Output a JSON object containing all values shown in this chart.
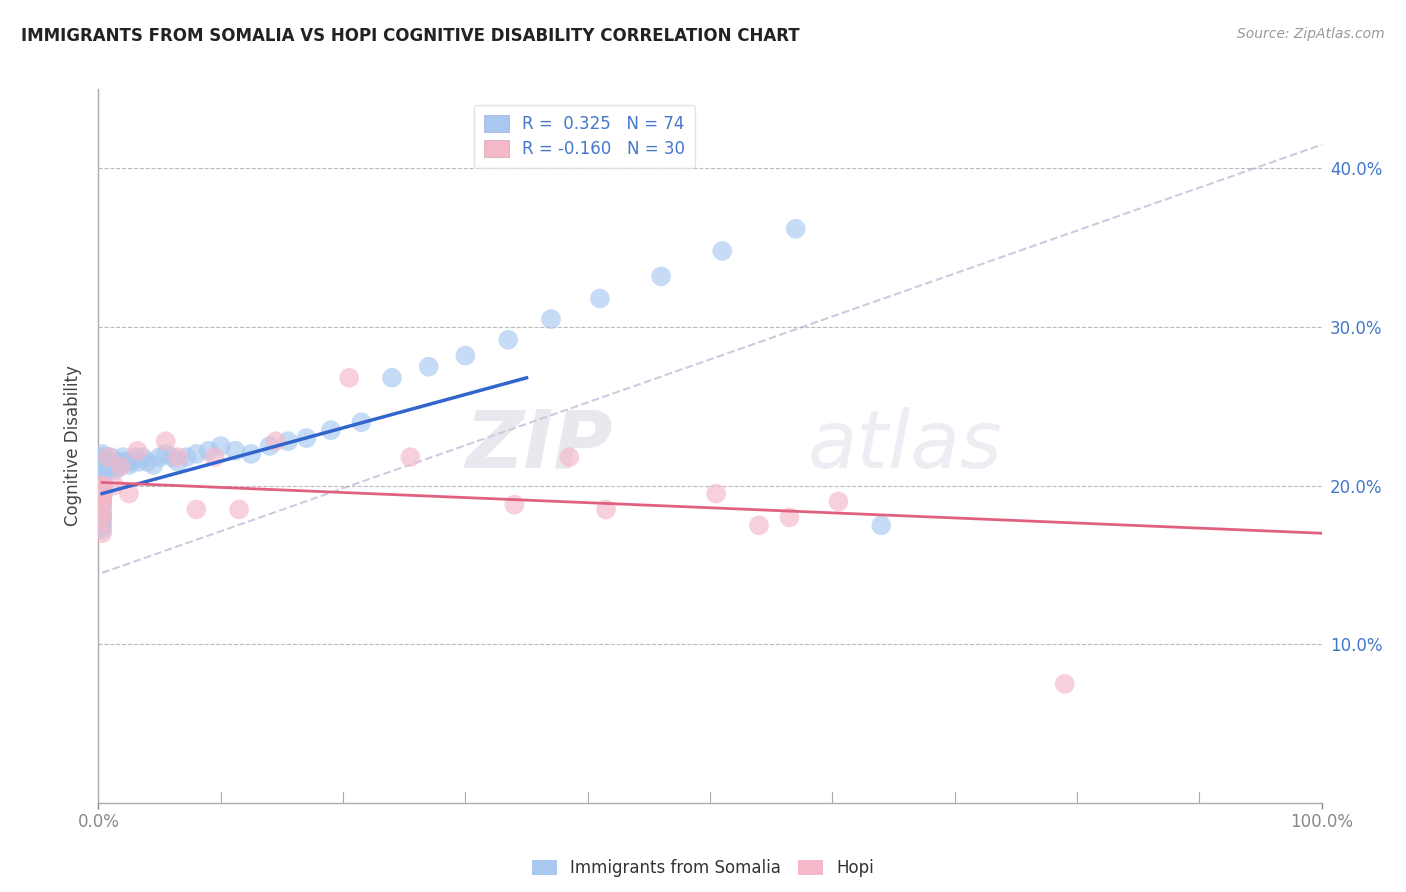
{
  "title": "IMMIGRANTS FROM SOMALIA VS HOPI COGNITIVE DISABILITY CORRELATION CHART",
  "source": "Source: ZipAtlas.com",
  "ylabel": "Cognitive Disability",
  "xlim": [
    0.0,
    1.0
  ],
  "ylim": [
    0.0,
    0.45
  ],
  "yticks": [
    0.1,
    0.2,
    0.3,
    0.4
  ],
  "ytick_labels": [
    "10.0%",
    "20.0%",
    "30.0%",
    "40.0%"
  ],
  "xtick_labels": [
    "0.0%",
    "100.0%"
  ],
  "legend_r1": "R =  0.325",
  "legend_n1": "N = 74",
  "legend_r2": "R = -0.160",
  "legend_n2": "N = 30",
  "blue_color": "#A8C8F0",
  "pink_color": "#F5B8C8",
  "line_blue": "#3366CC",
  "line_pink": "#E06080",
  "axis_color": "#4477CC",
  "grid_color": "#BBBBBB",
  "somalia_x": [
    0.003,
    0.003,
    0.003,
    0.003,
    0.003,
    0.003,
    0.003,
    0.003,
    0.003,
    0.003,
    0.003,
    0.003,
    0.003,
    0.003,
    0.003,
    0.003,
    0.003,
    0.003,
    0.003,
    0.003,
    0.004,
    0.004,
    0.004,
    0.004,
    0.004,
    0.004,
    0.004,
    0.005,
    0.005,
    0.006,
    0.007,
    0.008,
    0.009,
    0.01,
    0.011,
    0.012,
    0.014,
    0.015,
    0.016,
    0.018,
    0.02,
    0.022,
    0.025,
    0.027,
    0.03,
    0.033,
    0.036,
    0.04,
    0.045,
    0.05,
    0.055,
    0.06,
    0.065,
    0.072,
    0.08,
    0.09,
    0.1,
    0.112,
    0.125,
    0.14,
    0.155,
    0.17,
    0.19,
    0.215,
    0.24,
    0.27,
    0.3,
    0.335,
    0.37,
    0.41,
    0.46,
    0.51,
    0.57,
    0.64
  ],
  "somalia_y": [
    0.22,
    0.218,
    0.215,
    0.213,
    0.21,
    0.208,
    0.205,
    0.202,
    0.2,
    0.198,
    0.195,
    0.192,
    0.19,
    0.188,
    0.185,
    0.182,
    0.18,
    0.178,
    0.175,
    0.172,
    0.215,
    0.212,
    0.21,
    0.205,
    0.2,
    0.197,
    0.195,
    0.218,
    0.212,
    0.215,
    0.21,
    0.215,
    0.212,
    0.218,
    0.215,
    0.213,
    0.21,
    0.215,
    0.212,
    0.215,
    0.218,
    0.215,
    0.213,
    0.215,
    0.218,
    0.215,
    0.218,
    0.215,
    0.213,
    0.218,
    0.22,
    0.218,
    0.215,
    0.218,
    0.22,
    0.222,
    0.225,
    0.222,
    0.22,
    0.225,
    0.228,
    0.23,
    0.235,
    0.24,
    0.268,
    0.275,
    0.282,
    0.292,
    0.305,
    0.318,
    0.332,
    0.348,
    0.362,
    0.175
  ],
  "hopi_x": [
    0.003,
    0.003,
    0.003,
    0.003,
    0.003,
    0.003,
    0.003,
    0.003,
    0.003,
    0.008,
    0.013,
    0.018,
    0.025,
    0.032,
    0.055,
    0.065,
    0.08,
    0.095,
    0.115,
    0.145,
    0.205,
    0.255,
    0.34,
    0.385,
    0.415,
    0.505,
    0.54,
    0.565,
    0.605,
    0.79
  ],
  "hopi_y": [
    0.195,
    0.2,
    0.192,
    0.188,
    0.2,
    0.192,
    0.182,
    0.178,
    0.17,
    0.218,
    0.2,
    0.212,
    0.195,
    0.222,
    0.228,
    0.218,
    0.185,
    0.218,
    0.185,
    0.228,
    0.268,
    0.218,
    0.188,
    0.218,
    0.185,
    0.195,
    0.175,
    0.18,
    0.19,
    0.075
  ],
  "watermark_zip": "ZIP",
  "watermark_atlas": "atlas",
  "somalia_trendline_x": [
    0.003,
    0.35
  ],
  "somalia_trendline_y": [
    0.195,
    0.268
  ],
  "hopi_trendline_x": [
    0.003,
    1.0
  ],
  "hopi_trendline_y": [
    0.202,
    0.17
  ],
  "dashed_trendline_x": [
    0.003,
    1.0
  ],
  "dashed_trendline_y": [
    0.145,
    0.415
  ]
}
